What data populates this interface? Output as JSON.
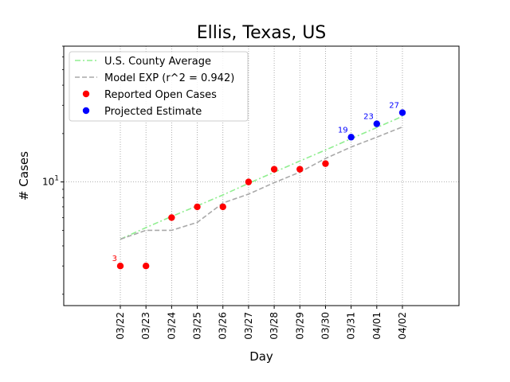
{
  "chart_data": {
    "type": "line",
    "title": "Ellis, Texas, US",
    "xlabel": "Day",
    "ylabel": "# Cases",
    "yscale": "log",
    "ylim": [
      1.7,
      70
    ],
    "grid": true,
    "legend_position": "upper-left",
    "categories": [
      "03/22",
      "03/23",
      "03/24",
      "03/25",
      "03/26",
      "03/27",
      "03/28",
      "03/29",
      "03/30",
      "03/31",
      "04/01",
      "04/02"
    ],
    "yticks": [
      {
        "value": 10,
        "label": "10^1"
      }
    ],
    "series": [
      {
        "name": "U.S. County Average",
        "kind": "line",
        "style": "dashdot",
        "color": "#90ee90",
        "values": [
          4.4,
          5.2,
          6.1,
          7.1,
          8.3,
          9.8,
          11.5,
          13.5,
          15.8,
          18.6,
          21.8,
          25.6
        ]
      },
      {
        "name": "Model EXP (r^2 = 0.942)",
        "kind": "line",
        "style": "dashed",
        "color": "#a9a9a9",
        "values": [
          4.4,
          5.0,
          5.0,
          5.6,
          7.4,
          8.4,
          9.9,
          11.5,
          14.0,
          16.5,
          19.0,
          22.0
        ]
      },
      {
        "name": "Reported Open Cases",
        "kind": "scatter",
        "color": "#ff0000",
        "values": [
          3,
          3,
          6,
          7,
          7,
          10,
          12,
          12,
          13,
          null,
          null,
          null
        ]
      },
      {
        "name": "Projected Estimate",
        "kind": "scatter",
        "color": "#0000ff",
        "values": [
          null,
          null,
          null,
          null,
          null,
          null,
          null,
          null,
          null,
          19,
          23,
          27
        ]
      }
    ],
    "annotations": [
      {
        "category": "03/22",
        "value": 3,
        "text": "3",
        "color": "#ff0000"
      },
      {
        "category": "03/31",
        "value": 19,
        "text": "19",
        "color": "#0000ff"
      },
      {
        "category": "04/01",
        "value": 23,
        "text": "23",
        "color": "#0000ff"
      },
      {
        "category": "04/02",
        "value": 27,
        "text": "27",
        "color": "#0000ff"
      }
    ]
  }
}
